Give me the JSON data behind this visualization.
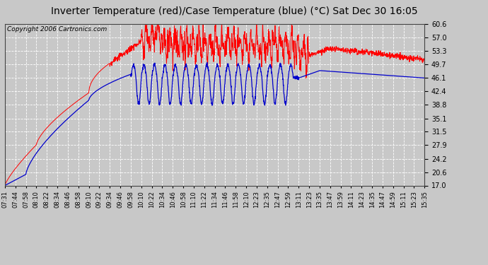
{
  "title": "Inverter Temperature (red)/Case Temperature (blue) (°C) Sat Dec 30 16:05",
  "copyright": "Copyright 2006 Cartronics.com",
  "ylim": [
    17.0,
    60.6
  ],
  "yticks": [
    17.0,
    20.6,
    24.2,
    27.9,
    31.5,
    35.1,
    38.8,
    42.4,
    46.1,
    49.7,
    53.3,
    57.0,
    60.6
  ],
  "xtick_labels": [
    "07:31",
    "07:44",
    "07:58",
    "08:10",
    "08:22",
    "08:34",
    "08:46",
    "08:58",
    "09:10",
    "09:22",
    "09:34",
    "09:46",
    "09:58",
    "10:10",
    "10:22",
    "10:34",
    "10:46",
    "10:58",
    "11:10",
    "11:22",
    "11:34",
    "11:46",
    "11:58",
    "12:10",
    "12:23",
    "12:35",
    "12:47",
    "12:59",
    "13:11",
    "13:23",
    "13:35",
    "13:47",
    "13:59",
    "14:11",
    "14:23",
    "14:35",
    "14:47",
    "14:59",
    "15:11",
    "15:23",
    "15:35"
  ],
  "bg_color": "#c8c8c8",
  "plot_bg_color": "#c8c8c8",
  "grid_color": "#ffffff",
  "red_color": "#ff0000",
  "blue_color": "#0000cc",
  "title_fontsize": 10,
  "copyright_fontsize": 6.5
}
